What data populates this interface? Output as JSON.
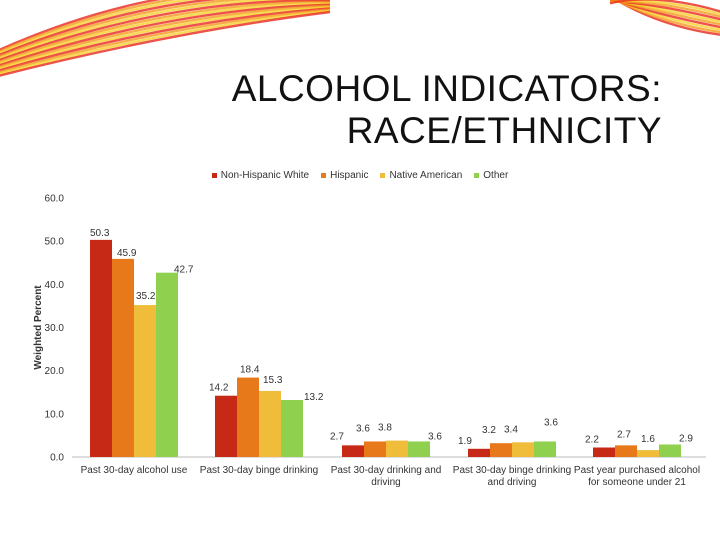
{
  "slide": {
    "title_line1": "ALCOHOL INDICATORS:",
    "title_line2": "RACE/ETHNICITY"
  },
  "colors": {
    "swoosh_red": "#e8281e",
    "swoosh_orange": "#f39a1c",
    "swoosh_yellow": "#f7cf2a"
  },
  "chart_data": {
    "type": "bar",
    "title": "",
    "ylabel": "Weighted Percent",
    "xlabel": "",
    "ylim": [
      0,
      60
    ],
    "yticks": [
      "0.0",
      "10.0",
      "20.0",
      "30.0",
      "40.0",
      "50.0",
      "60.0"
    ],
    "grid": false,
    "legend_position": "top",
    "categories": [
      "Past 30-day alcohol use",
      "Past 30-day binge drinking",
      "Past 30-day drinking and driving",
      "Past 30-day binge drinking and driving",
      "Past year purchased alcohol for someone under 21"
    ],
    "category_lines": [
      [
        "Past 30-day alcohol use"
      ],
      [
        "Past 30-day binge drinking"
      ],
      [
        "Past 30-day drinking and",
        "driving"
      ],
      [
        "Past 30-day binge drinking",
        "and driving"
      ],
      [
        "Past year purchased alcohol",
        "for someone under 21"
      ]
    ],
    "series": [
      {
        "name": "Non-Hispanic White",
        "color": "#c62a17",
        "values": [
          50.3,
          14.2,
          2.7,
          1.9,
          2.2
        ]
      },
      {
        "name": "Hispanic",
        "color": "#e8791a",
        "values": [
          45.9,
          18.4,
          3.6,
          3.2,
          2.7
        ]
      },
      {
        "name": "Native American",
        "color": "#f0bd3a",
        "values": [
          35.2,
          15.3,
          3.8,
          3.4,
          1.6
        ]
      },
      {
        "name": "Other",
        "color": "#8fd14f",
        "values": [
          42.7,
          13.2,
          3.6,
          3.6,
          2.9
        ]
      }
    ]
  }
}
